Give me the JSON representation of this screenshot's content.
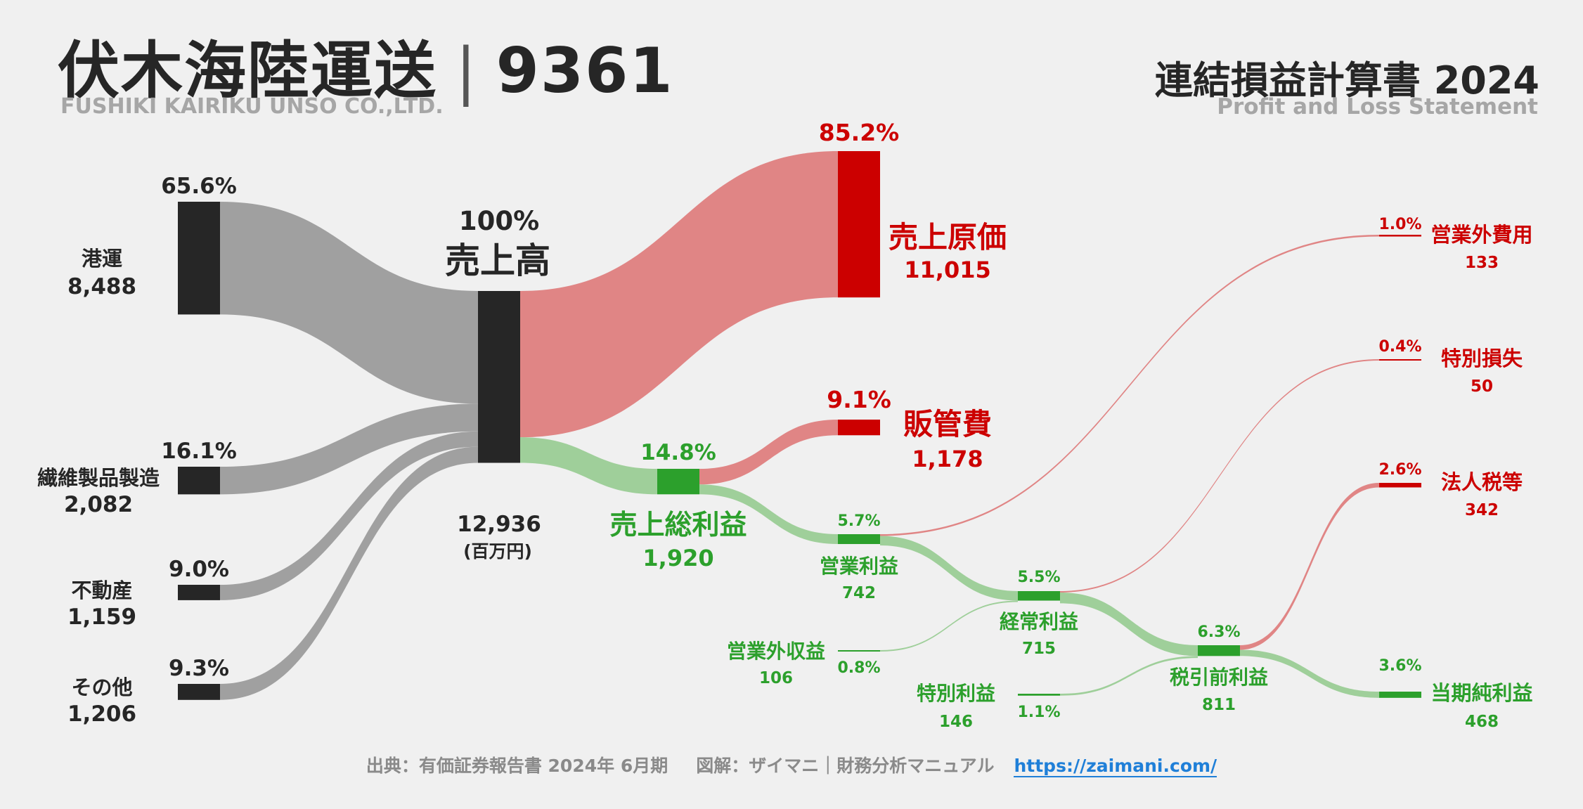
{
  "header": {
    "company_jp": "伏木海陸運送",
    "ticker": "9361",
    "company_en": "FUSHIKI KAIRIKU UNSO CO.,LTD.",
    "statement_jp": "連結損益計算書 2024",
    "statement_en": "Profit and Loss Statement"
  },
  "footer": {
    "source": "出典：有価証券報告書 2024年 6月期",
    "credit": "図解：ザイマニ｜財務分析マニュアル",
    "url": "https://zaimani.com/"
  },
  "colors": {
    "segment": "#262626",
    "segment_flow": "#a0a0a0",
    "cost": "#cc0000",
    "cost_flow": "#e08585",
    "profit": "#2ca02c",
    "profit_flow": "#9fcf9a"
  },
  "chart_data": {
    "type": "sankey",
    "unit": "(百万円)",
    "nodes": [
      {
        "id": "port",
        "label": "港運",
        "value": 8488,
        "value_text": "8,488",
        "pct": "65.6%",
        "kind": "segment"
      },
      {
        "id": "textile",
        "label": "繊維製品製造",
        "value": 2082,
        "value_text": "2,082",
        "pct": "16.1%",
        "kind": "segment"
      },
      {
        "id": "realestate",
        "label": "不動産",
        "value": 1159,
        "value_text": "1,159",
        "pct": "9.0%",
        "kind": "segment"
      },
      {
        "id": "other",
        "label": "その他",
        "value": 1206,
        "value_text": "1,206",
        "pct": "9.3%",
        "kind": "segment"
      },
      {
        "id": "revenue",
        "label": "売上高",
        "value": 12936,
        "value_text": "12,936",
        "pct": "100%",
        "kind": "revenue"
      },
      {
        "id": "cogs",
        "label": "売上原価",
        "value": 11015,
        "value_text": "11,015",
        "pct": "85.2%",
        "kind": "cost"
      },
      {
        "id": "gross",
        "label": "売上総利益",
        "value": 1920,
        "value_text": "1,920",
        "pct": "14.8%",
        "kind": "profit"
      },
      {
        "id": "sga",
        "label": "販管費",
        "value": 1178,
        "value_text": "1,178",
        "pct": "9.1%",
        "kind": "cost"
      },
      {
        "id": "op",
        "label": "営業利益",
        "value": 742,
        "value_text": "742",
        "pct": "5.7%",
        "kind": "profit"
      },
      {
        "id": "nonop_inc",
        "label": "営業外収益",
        "value": 106,
        "value_text": "106",
        "pct": "0.8%",
        "kind": "profit"
      },
      {
        "id": "nonop_exp",
        "label": "営業外費用",
        "value": 133,
        "value_text": "133",
        "pct": "1.0%",
        "kind": "cost"
      },
      {
        "id": "ordinary",
        "label": "経常利益",
        "value": 715,
        "value_text": "715",
        "pct": "5.5%",
        "kind": "profit"
      },
      {
        "id": "ext_gain",
        "label": "特別利益",
        "value": 146,
        "value_text": "146",
        "pct": "1.1%",
        "kind": "profit"
      },
      {
        "id": "ext_loss",
        "label": "特別損失",
        "value": 50,
        "value_text": "50",
        "pct": "0.4%",
        "kind": "cost"
      },
      {
        "id": "pretax",
        "label": "税引前利益",
        "value": 811,
        "value_text": "811",
        "pct": "6.3%",
        "kind": "profit"
      },
      {
        "id": "tax",
        "label": "法人税等",
        "value": 342,
        "value_text": "342",
        "pct": "2.6%",
        "kind": "cost"
      },
      {
        "id": "net",
        "label": "当期純利益",
        "value": 468,
        "value_text": "468",
        "pct": "3.6%",
        "kind": "profit"
      }
    ],
    "links": [
      {
        "source": "port",
        "target": "revenue",
        "value": 8488
      },
      {
        "source": "textile",
        "target": "revenue",
        "value": 2082
      },
      {
        "source": "realestate",
        "target": "revenue",
        "value": 1159
      },
      {
        "source": "other",
        "target": "revenue",
        "value": 1206
      },
      {
        "source": "revenue",
        "target": "cogs",
        "value": 11015
      },
      {
        "source": "revenue",
        "target": "gross",
        "value": 1920
      },
      {
        "source": "gross",
        "target": "sga",
        "value": 1178
      },
      {
        "source": "gross",
        "target": "op",
        "value": 742
      },
      {
        "source": "op",
        "target": "nonop_exp",
        "value": 133
      },
      {
        "source": "op",
        "target": "ordinary",
        "value": 715
      },
      {
        "source": "nonop_inc",
        "target": "ordinary",
        "value": 106
      },
      {
        "source": "ordinary",
        "target": "ext_loss",
        "value": 50
      },
      {
        "source": "ordinary",
        "target": "pretax",
        "value": 811
      },
      {
        "source": "ext_gain",
        "target": "pretax",
        "value": 146
      },
      {
        "source": "pretax",
        "target": "tax",
        "value": 342
      },
      {
        "source": "pretax",
        "target": "net",
        "value": 468
      }
    ]
  }
}
